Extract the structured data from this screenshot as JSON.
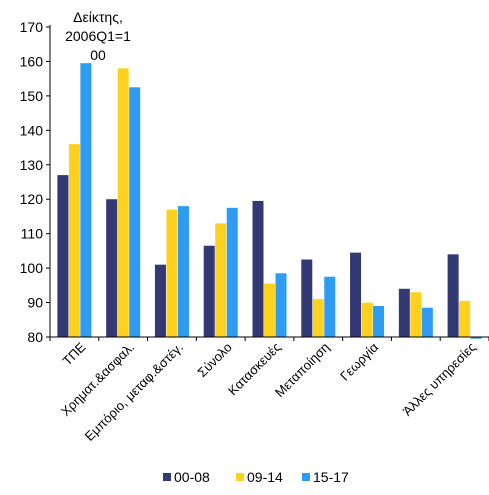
{
  "chart_data": {
    "type": "bar",
    "unit_label": "Δείκτης, 2006Q1=100",
    "unit_label_lines": [
      "Δείκτης,",
      "2006Q1=1",
      "00"
    ],
    "categories": [
      "ΤΠΕ",
      "Χρηματ.&ασφαλ.",
      "Εμπόριο, μεταφ.&στέγ.",
      "Σύνολο",
      "Κατασκευές",
      "Μεταποίηση",
      "Γεωργία",
      "",
      "Άλλες υπηρεσίες"
    ],
    "series": [
      {
        "name": "00-08",
        "color": "#333a73",
        "values": [
          127,
          120,
          101,
          106.5,
          119.5,
          102.5,
          104.5,
          94,
          104
        ]
      },
      {
        "name": "09-14",
        "color": "#ffd11f",
        "values": [
          136,
          158,
          117,
          113,
          95.5,
          91,
          90,
          93,
          90.5
        ]
      },
      {
        "name": "15-17",
        "color": "#2e9cf2",
        "values": [
          159.5,
          152.5,
          118,
          117.5,
          98.5,
          97.5,
          89,
          88.5,
          79.5
        ]
      }
    ],
    "yticks": [
      80,
      90,
      100,
      110,
      120,
      130,
      140,
      150,
      160,
      170
    ],
    "ylim": [
      80,
      170
    ],
    "legend_position": "bottom",
    "grid": false
  }
}
